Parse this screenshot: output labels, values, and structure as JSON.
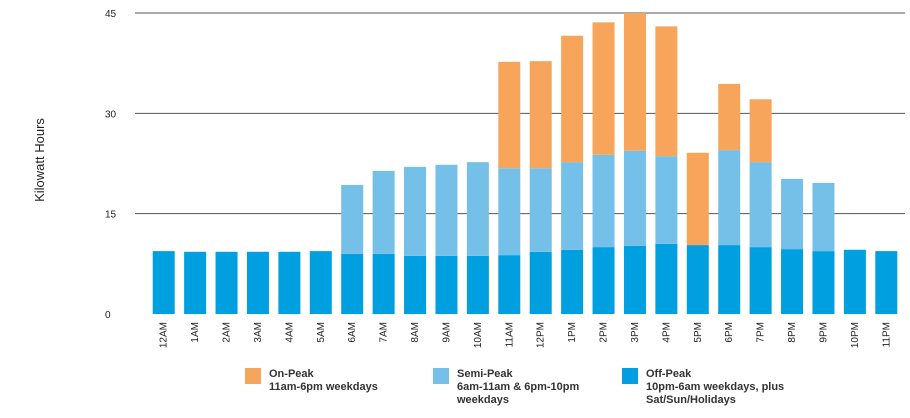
{
  "chart_data": {
    "type": "stacked-bar",
    "y_label": "Kilowatt Hours",
    "categories": [
      "12AM",
      "1AM",
      "2AM",
      "3AM",
      "4AM",
      "5AM",
      "6AM",
      "7AM",
      "8AM",
      "9AM",
      "10AM",
      "11AM",
      "12PM",
      "1PM",
      "2PM",
      "3PM",
      "4PM",
      "5PM",
      "6PM",
      "7PM",
      "8PM",
      "9PM",
      "10PM",
      "11PM"
    ],
    "series": [
      {
        "name": "Off-Peak",
        "description": "10pm-6am weekdays, plus Sat/Sun/Holidays",
        "color": "#009fe0",
        "values": [
          9.4,
          9.3,
          9.3,
          9.3,
          9.3,
          9.4,
          9.0,
          9.0,
          8.7,
          8.7,
          8.7,
          8.8,
          9.3,
          9.6,
          10.0,
          10.2,
          10.5,
          10.3,
          10.3,
          10.0,
          9.7,
          9.4,
          9.6,
          9.4
        ]
      },
      {
        "name": "Semi-Peak",
        "description": "6am-11am & 6pm-10pm weekdays",
        "color": "#74c0e8",
        "values": [
          null,
          null,
          null,
          null,
          null,
          null,
          10.3,
          12.4,
          13.3,
          13.6,
          14.0,
          13.0,
          12.5,
          13.1,
          13.8,
          14.2,
          13.1,
          null,
          14.2,
          12.7,
          10.5,
          10.2,
          null,
          null
        ]
      },
      {
        "name": "On-Peak",
        "description": "11am-6pm weekdays",
        "color": "#f7a55a",
        "values": [
          null,
          null,
          null,
          null,
          null,
          null,
          null,
          null,
          null,
          null,
          null,
          15.9,
          16.0,
          18.9,
          19.8,
          20.6,
          19.4,
          13.8,
          9.9,
          9.4,
          null,
          null,
          null,
          null
        ]
      }
    ],
    "ylim": [
      0,
      45
    ],
    "yticks": [
      0,
      15,
      30,
      45
    ],
    "grid": true
  }
}
